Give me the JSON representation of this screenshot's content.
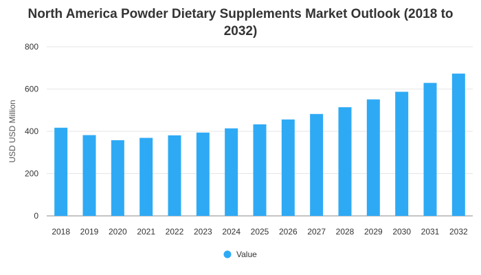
{
  "chart_data": {
    "type": "bar",
    "title": "North America Powder Dietary Supplements Market Outlook (2018 to 2032)",
    "xlabel": "",
    "ylabel": "USD USD Million",
    "ylim": [
      0,
      800
    ],
    "yticks": [
      0,
      200,
      400,
      600,
      800
    ],
    "grid": true,
    "legend_position": "bottom",
    "categories": [
      "2018",
      "2019",
      "2020",
      "2021",
      "2022",
      "2023",
      "2024",
      "2025",
      "2026",
      "2027",
      "2028",
      "2029",
      "2030",
      "2031",
      "2032"
    ],
    "series": [
      {
        "name": "Value",
        "color": "#2eaaf5",
        "values": [
          417,
          382,
          358,
          369,
          381,
          394,
          414,
          433,
          456,
          482,
          514,
          551,
          587,
          629,
          673
        ]
      }
    ]
  }
}
